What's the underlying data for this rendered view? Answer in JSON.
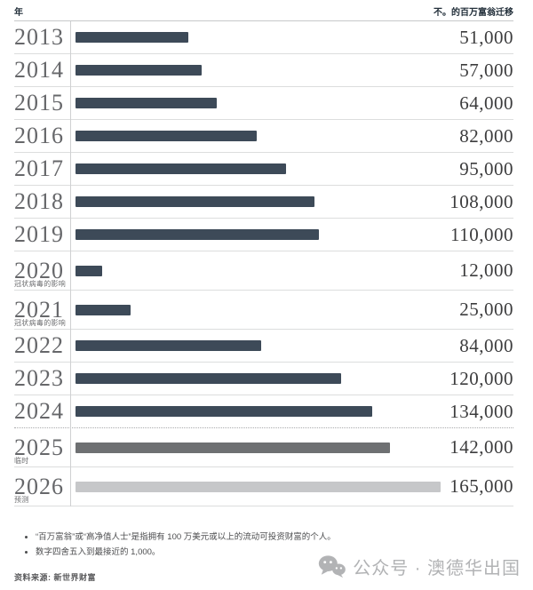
{
  "chart_data": {
    "type": "bar",
    "orientation": "horizontal",
    "col_header_left": "年",
    "col_header_right": "不。的百万富翁迁移",
    "xlim": [
      0,
      165000
    ],
    "grid": false,
    "colors": {
      "default": "#3d4a58",
      "provisional": "#6e7072",
      "forecast": "#c6c7c9"
    },
    "categories": [
      "2013",
      "2014",
      "2015",
      "2016",
      "2017",
      "2018",
      "2019",
      "2020",
      "2021",
      "2022",
      "2023",
      "2024",
      "2025",
      "2026"
    ],
    "values": [
      51000,
      57000,
      64000,
      82000,
      95000,
      108000,
      110000,
      12000,
      25000,
      84000,
      120000,
      134000,
      142000,
      165000
    ],
    "rows": [
      {
        "year": "2013",
        "value": 51000,
        "value_label": "51,000",
        "note": "",
        "style": "default",
        "divider_after": "solid"
      },
      {
        "year": "2014",
        "value": 57000,
        "value_label": "57,000",
        "note": "",
        "style": "default",
        "divider_after": "solid"
      },
      {
        "year": "2015",
        "value": 64000,
        "value_label": "64,000",
        "note": "",
        "style": "default",
        "divider_after": "solid"
      },
      {
        "year": "2016",
        "value": 82000,
        "value_label": "82,000",
        "note": "",
        "style": "default",
        "divider_after": "solid"
      },
      {
        "year": "2017",
        "value": 95000,
        "value_label": "95,000",
        "note": "",
        "style": "default",
        "divider_after": "solid"
      },
      {
        "year": "2018",
        "value": 108000,
        "value_label": "108,000",
        "note": "",
        "style": "default",
        "divider_after": "solid"
      },
      {
        "year": "2019",
        "value": 110000,
        "value_label": "110,000",
        "note": "",
        "style": "default",
        "divider_after": "solid"
      },
      {
        "year": "2020",
        "value": 12000,
        "value_label": "12,000",
        "note": "冠状病毒的影响",
        "style": "default",
        "divider_after": "solid"
      },
      {
        "year": "2021",
        "value": 25000,
        "value_label": "25,000",
        "note": "冠状病毒的影响",
        "style": "default",
        "divider_after": "solid"
      },
      {
        "year": "2022",
        "value": 84000,
        "value_label": "84,000",
        "note": "",
        "style": "default",
        "divider_after": "solid"
      },
      {
        "year": "2023",
        "value": 120000,
        "value_label": "120,000",
        "note": "",
        "style": "default",
        "divider_after": "solid"
      },
      {
        "year": "2024",
        "value": 134000,
        "value_label": "134,000",
        "note": "",
        "style": "default",
        "divider_after": "dotted"
      },
      {
        "year": "2025",
        "value": 142000,
        "value_label": "142,000",
        "note": "临时",
        "style": "provisional",
        "divider_after": "solid"
      },
      {
        "year": "2026",
        "value": 165000,
        "value_label": "165,000",
        "note": "预测",
        "style": "forecast",
        "divider_after": "solid"
      }
    ]
  },
  "footnotes": [
    "“百万富翁”或“高净值人士”是指拥有 100 万美元或以上的流动可投资财富的个人。",
    "数字四舍五入到最接近的 1,000。"
  ],
  "source": "资料来源: 新世界财富",
  "watermark": {
    "icon": "wechat-icon",
    "text": "公众号 · 澳德华出国"
  }
}
